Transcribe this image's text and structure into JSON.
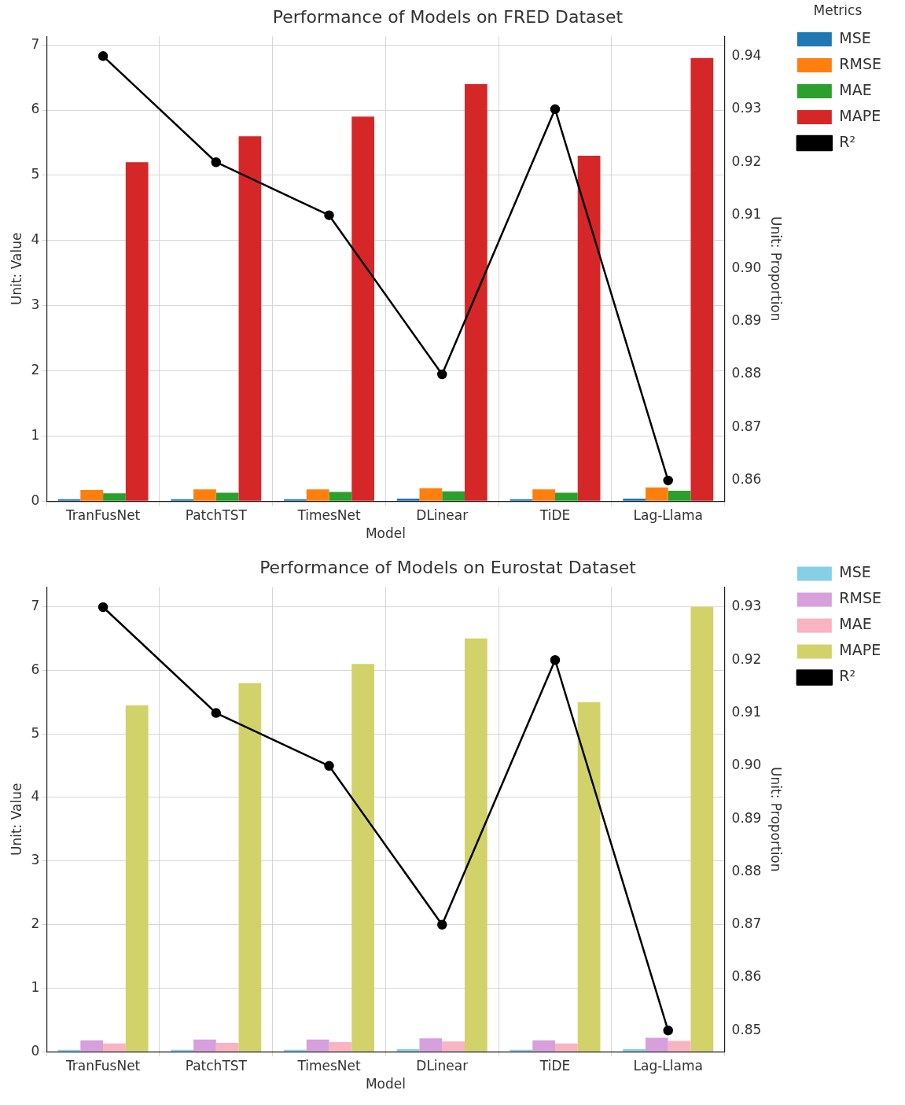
{
  "chart_data": [
    {
      "type": "bar",
      "title": "Performance of Models on FRED Dataset",
      "xlabel": "Model",
      "ylabel": "Unit: Value",
      "y2label": "Unit: Proportion",
      "legend_title": "Metrics",
      "legend": "top right",
      "grid": true,
      "categories": [
        "TranFusNet",
        "PatchTST",
        "TimesNet",
        "DLinear",
        "TiDE",
        "Lag-Llama"
      ],
      "ylim": [
        0,
        7.13
      ],
      "yticks": [
        0,
        1,
        2,
        3,
        4,
        5,
        6,
        7
      ],
      "y2lim": [
        0.8561,
        0.9437
      ],
      "y2ticks": [
        {
          "value": 0.86,
          "label": "0.86"
        },
        {
          "value": 0.87,
          "label": "0.87"
        },
        {
          "value": 0.88,
          "label": "0.88"
        },
        {
          "value": 0.89,
          "label": "0.89"
        },
        {
          "value": 0.9,
          "label": "0.90"
        },
        {
          "value": 0.91,
          "label": "0.91"
        },
        {
          "value": 0.92,
          "label": "0.92"
        },
        {
          "value": 0.93,
          "label": "0.93"
        },
        {
          "value": 0.94,
          "label": "0.94"
        }
      ],
      "series": [
        {
          "name": "MSE",
          "color": "#1f77b4",
          "values": [
            0.03,
            0.03,
            0.03,
            0.04,
            0.03,
            0.04
          ]
        },
        {
          "name": "RMSE",
          "color": "#ff7f0e",
          "values": [
            0.17,
            0.18,
            0.18,
            0.2,
            0.18,
            0.21
          ]
        },
        {
          "name": "MAE",
          "color": "#2ca02c",
          "values": [
            0.12,
            0.13,
            0.14,
            0.15,
            0.13,
            0.16
          ]
        },
        {
          "name": "MAPE",
          "color": "#d62728",
          "values": [
            5.2,
            5.6,
            5.9,
            6.4,
            5.3,
            6.8
          ]
        },
        {
          "name": "R²",
          "color": "#000000",
          "type": "line",
          "axis": "y2",
          "marker": "circle",
          "values": [
            0.94,
            0.92,
            0.91,
            0.88,
            0.93,
            0.86
          ]
        }
      ]
    },
    {
      "type": "bar",
      "title": "Performance of Models on Eurostat Dataset",
      "xlabel": "Model",
      "ylabel": "Unit: Value",
      "y2label": "Unit: Proportion",
      "legend": "top right",
      "grid": true,
      "categories": [
        "TranFusNet",
        "PatchTST",
        "TimesNet",
        "DLinear",
        "TiDE",
        "Lag-Llama"
      ],
      "ylim": [
        0,
        7.31
      ],
      "yticks": [
        0,
        1,
        2,
        3,
        4,
        5,
        6,
        7
      ],
      "y2lim": [
        0.846,
        0.9338
      ],
      "y2ticks": [
        {
          "value": 0.85,
          "label": "0.85"
        },
        {
          "value": 0.86,
          "label": "0.86"
        },
        {
          "value": 0.87,
          "label": "0.87"
        },
        {
          "value": 0.88,
          "label": "0.88"
        },
        {
          "value": 0.89,
          "label": "0.89"
        },
        {
          "value": 0.9,
          "label": "0.90"
        },
        {
          "value": 0.91,
          "label": "0.91"
        },
        {
          "value": 0.92,
          "label": "0.92"
        },
        {
          "value": 0.93,
          "label": "0.93"
        }
      ],
      "series": [
        {
          "name": "MSE",
          "color": "#86cfe6",
          "values": [
            0.03,
            0.03,
            0.03,
            0.04,
            0.03,
            0.04
          ]
        },
        {
          "name": "RMSE",
          "color": "#d79fdc",
          "values": [
            0.18,
            0.19,
            0.19,
            0.21,
            0.18,
            0.22
          ]
        },
        {
          "name": "MAE",
          "color": "#f8b4c0",
          "values": [
            0.13,
            0.14,
            0.15,
            0.16,
            0.13,
            0.17
          ]
        },
        {
          "name": "MAPE",
          "color": "#d2d26a",
          "values": [
            5.45,
            5.8,
            6.1,
            6.5,
            5.5,
            7.0
          ]
        },
        {
          "name": "R²",
          "color": "#000000",
          "type": "line",
          "axis": "y2",
          "marker": "circle",
          "values": [
            0.93,
            0.91,
            0.9,
            0.87,
            0.92,
            0.85
          ]
        }
      ]
    }
  ]
}
